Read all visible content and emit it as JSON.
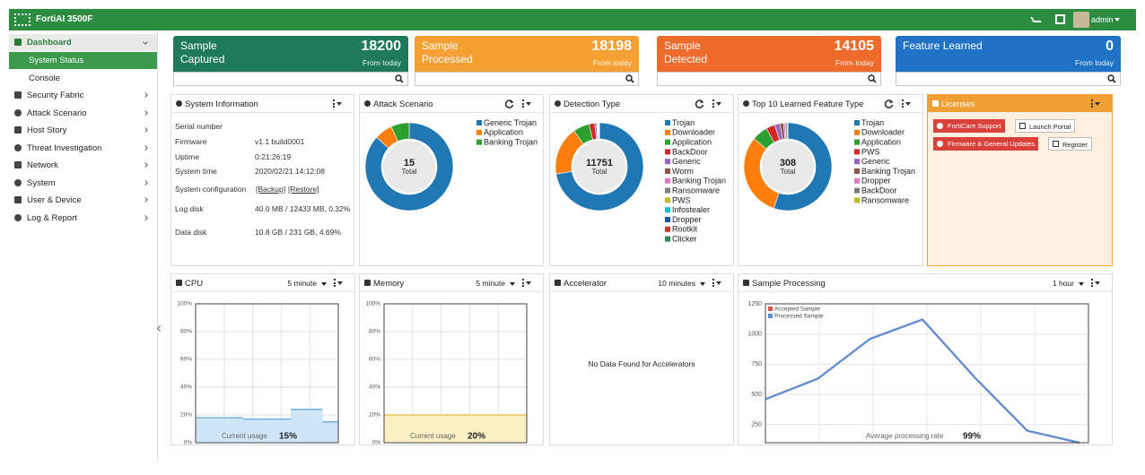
{
  "topbar": {
    "product": "FortiAI 3500F",
    "user": "admin"
  },
  "menu": {
    "items": [
      "Dashboard",
      "Security Fabric",
      "Attack Scenario",
      "Host Story",
      "Threat Investigation",
      "Network",
      "System",
      "User & Device",
      "Log & Report"
    ],
    "submenu": [
      "System Status",
      "Console"
    ]
  },
  "cards": [
    {
      "title": "Sample Captured",
      "value": 18200,
      "caption": "From today",
      "color": "#1f7a5a"
    },
    {
      "title": "Sample Processed",
      "value": 18198,
      "caption": "From today",
      "color": "#f5a033"
    },
    {
      "title": "Sample Detected",
      "value": 14105,
      "caption": "From today",
      "color": "#ef6b2c"
    },
    {
      "title": "Feature Learned",
      "value": 0,
      "caption": "From today",
      "color": "#1f72c4"
    }
  ],
  "system_information": {
    "title": "System Information",
    "rows": [
      {
        "label": "Serial number"
      },
      {
        "label": "Firmware",
        "value": "v1.1 build0001"
      },
      {
        "label": "Uptime",
        "value": "0:21:26:19"
      },
      {
        "label": "System time",
        "value": "2020/02/21 14:12:08"
      },
      {
        "label": "System configuration",
        "links": [
          "[Backup]",
          "[Restore]"
        ]
      },
      {
        "label": "Log disk",
        "value": "40.0 MB / 12433 MB, 0.32%"
      },
      {
        "label": "Data disk",
        "value": "10.8 GB / 231 GB, 4.69%"
      }
    ]
  },
  "attack_scenario": {
    "title": "Attack Scenario",
    "total": 15,
    "total_label": "Total",
    "segments": [
      {
        "name": "Generic Trojan",
        "color": "#1f77b4",
        "value": 13
      },
      {
        "name": "Application",
        "color": "#ff7f0e",
        "value": 1
      },
      {
        "name": "Banking Trojan",
        "color": "#2ca02c",
        "value": 1
      }
    ]
  },
  "detection_type": {
    "title": "Detection Type",
    "total": 11751,
    "total_label": "Total",
    "segments": [
      {
        "name": "Trojan",
        "color": "#1f77b4",
        "value": 8500
      },
      {
        "name": "Downloader",
        "color": "#ff7f0e",
        "value": 2100
      },
      {
        "name": "Application",
        "color": "#2ca02c",
        "value": 700
      },
      {
        "name": "BackDoor",
        "color": "#d62728",
        "value": 250
      },
      {
        "name": "Generic",
        "color": "#9467bd",
        "value": 80
      },
      {
        "name": "Worm",
        "color": "#8c564b",
        "value": 30
      },
      {
        "name": "Banking Trojan",
        "color": "#e377c2",
        "value": 25
      },
      {
        "name": "Ransomware",
        "color": "#7f7f7f",
        "value": 20
      },
      {
        "name": "PWS",
        "color": "#bcbd22",
        "value": 15
      },
      {
        "name": "Infostealer",
        "color": "#17becf",
        "value": 10
      },
      {
        "name": "Dropper",
        "color": "#1a55a0",
        "value": 10
      },
      {
        "name": "Rootkit",
        "color": "#c0392b",
        "value": 6
      },
      {
        "name": "Clicker",
        "color": "#2e8b57",
        "value": 5
      }
    ]
  },
  "top10_feature_type": {
    "title": "Top 10 Learned Feature Type",
    "total": 308,
    "total_label": "Total",
    "segments": [
      {
        "name": "Trojan",
        "color": "#1f77b4",
        "value": 170
      },
      {
        "name": "Downloader",
        "color": "#ff7f0e",
        "value": 95
      },
      {
        "name": "Application",
        "color": "#2ca02c",
        "value": 18
      },
      {
        "name": "PWS",
        "color": "#d62728",
        "value": 10
      },
      {
        "name": "Generic",
        "color": "#9467bd",
        "value": 6
      },
      {
        "name": "Banking Trojan",
        "color": "#8c564b",
        "value": 4
      },
      {
        "name": "Dropper",
        "color": "#e377c2",
        "value": 2
      },
      {
        "name": "BackDoor",
        "color": "#7f7f7f",
        "value": 2
      },
      {
        "name": "Ransomware",
        "color": "#bcbd22",
        "value": 1
      }
    ]
  },
  "licenses": {
    "title": "Licenses",
    "rows": [
      [
        "FortiCare Support",
        "Launch Portal"
      ],
      [
        "Firmware & General Updates",
        "Register"
      ]
    ]
  },
  "cpu": {
    "title": "CPU",
    "period": "5 minute",
    "ylim": [
      0,
      100
    ],
    "yticks": [
      {
        "value": 0,
        "label": "0%"
      },
      {
        "value": 20,
        "label": "20%"
      },
      {
        "value": 40,
        "label": "40%"
      },
      {
        "value": 60,
        "label": "60%"
      },
      {
        "value": 80,
        "label": "80%"
      },
      {
        "value": 100,
        "label": "100%"
      }
    ],
    "values": [
      18,
      18,
      18,
      17,
      17,
      17,
      24,
      24,
      15
    ],
    "color": "#cfe6f8",
    "line_color": "#6fb1e6",
    "caption": "Current usage",
    "current": "15%"
  },
  "memory": {
    "title": "Memory",
    "period": "5 minute",
    "ylim": [
      0,
      100
    ],
    "yticks": [
      {
        "value": 0,
        "label": "0%"
      },
      {
        "value": 20,
        "label": "20%"
      },
      {
        "value": 40,
        "label": "40%"
      },
      {
        "value": 60,
        "label": "60%"
      },
      {
        "value": 80,
        "label": "80%"
      },
      {
        "value": 100,
        "label": "100%"
      }
    ],
    "values": [
      20,
      20,
      20,
      20,
      20,
      20,
      20,
      20,
      20
    ],
    "color": "#fbefc4",
    "line_color": "#e8c65a",
    "caption": "Current usage",
    "current": "20%"
  },
  "accelerator": {
    "title": "Accelerator",
    "period": "10 minutes",
    "message": "No Data Found for Accelerators"
  },
  "sample_processing": {
    "title": "Sample Processing",
    "period": "1 hour",
    "ylim": [
      100,
      1250
    ],
    "yticks": [
      250,
      500,
      750,
      1000,
      1250
    ],
    "series": [
      {
        "name": "Accepted Sample",
        "color": "#d9534f",
        "values": [
          460,
          630,
          960,
          1120,
          640,
          200,
          100
        ]
      },
      {
        "name": "Processed Sample",
        "color": "#5b8fd6",
        "values": [
          460,
          630,
          960,
          1120,
          640,
          200,
          100
        ]
      }
    ],
    "caption": "Average processing rate",
    "current": "99%"
  }
}
